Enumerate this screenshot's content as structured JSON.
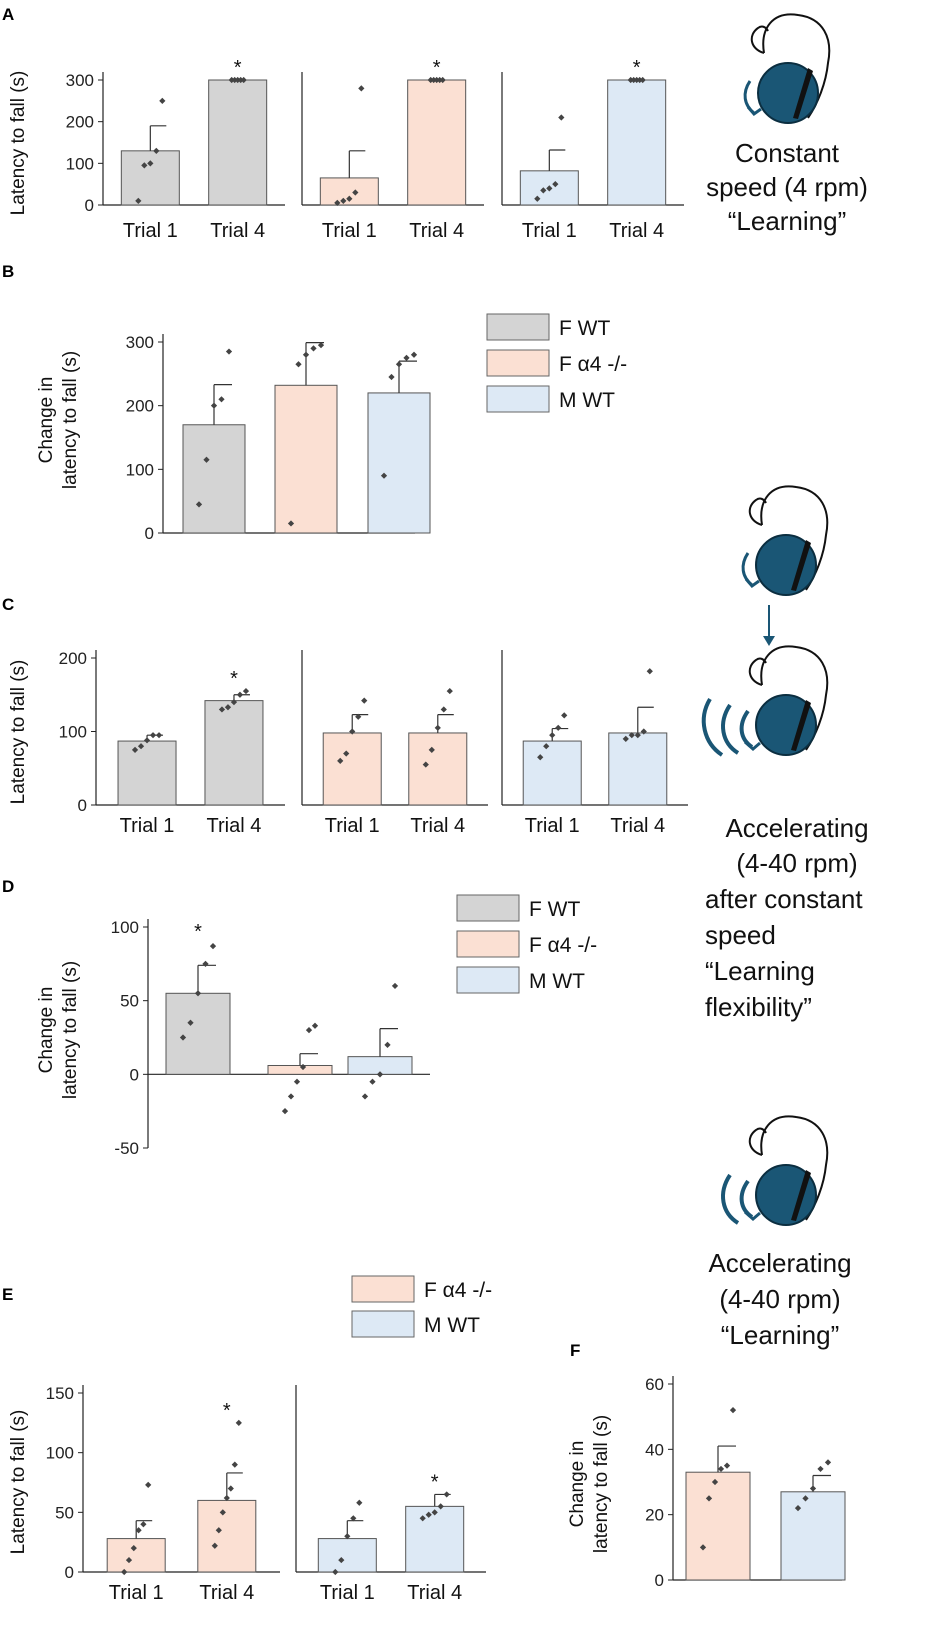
{
  "colors": {
    "F WT": "#d4d4d4",
    "F α4 -/-": "#fbe0d3",
    "M WT": "#dde9f5",
    "mouse_ball": "#1a5675",
    "arrow": "#1a5675"
  },
  "side_captions": {
    "constant": [
      "Constant",
      "speed (4 rpm)",
      "“Learning”"
    ],
    "flex": [
      "Accelerating",
      "(4-40 rpm)",
      "after constant",
      "speed",
      "“Learning",
      "flexibility”"
    ],
    "accel": [
      "Accelerating",
      "(4-40 rpm)",
      "“Learning”"
    ]
  },
  "chart_data": [
    {
      "panel": "A",
      "type": "bar",
      "ylabel": "Latency to fall (s)",
      "ylim": [
        0,
        300
      ],
      "yticks": [
        0,
        100,
        200,
        300
      ],
      "categories": [
        "Trial 1",
        "Trial 4"
      ],
      "groups": [
        {
          "name": "F WT",
          "means": [
            130,
            300
          ],
          "sem": [
            60,
            0
          ],
          "sig": [
            false,
            true
          ],
          "points": [
            [
              10,
              95,
              100,
              130,
              250
            ],
            [
              300,
              300,
              300,
              300,
              300
            ]
          ]
        },
        {
          "name": "F α4 -/-",
          "means": [
            65,
            300
          ],
          "sem": [
            65,
            0
          ],
          "sig": [
            false,
            true
          ],
          "points": [
            [
              5,
              10,
              15,
              30,
              280
            ],
            [
              300,
              300,
              300,
              300,
              300
            ]
          ]
        },
        {
          "name": "M WT",
          "means": [
            82,
            300
          ],
          "sem": [
            50,
            0
          ],
          "sig": [
            false,
            true
          ],
          "points": [
            [
              15,
              35,
              40,
              50,
              210
            ],
            [
              300,
              300,
              300,
              300,
              300
            ]
          ]
        }
      ]
    },
    {
      "panel": "B",
      "type": "bar",
      "ylabel": [
        "Change in",
        "latency to fall (s)"
      ],
      "ylim": [
        0,
        300
      ],
      "yticks": [
        0,
        100,
        200,
        300
      ],
      "legend": [
        "F WT",
        "F α4 -/-",
        "M WT"
      ],
      "groups": [
        {
          "name": "F WT",
          "mean": 170,
          "sem": 63,
          "points": [
            45,
            115,
            200,
            210,
            285
          ]
        },
        {
          "name": "F α4 -/-",
          "mean": 232,
          "sem": 67,
          "points": [
            15,
            265,
            280,
            290,
            295
          ]
        },
        {
          "name": "M WT",
          "mean": 220,
          "sem": 50,
          "points": [
            90,
            245,
            265,
            275,
            280
          ]
        }
      ]
    },
    {
      "panel": "C",
      "type": "bar",
      "ylabel": "Latency to fall (s)",
      "ylim": [
        0,
        200
      ],
      "yticks": [
        0,
        100,
        200
      ],
      "categories": [
        "Trial 1",
        "Trial 4"
      ],
      "groups": [
        {
          "name": "F WT",
          "means": [
            87,
            142
          ],
          "sem": [
            8,
            8
          ],
          "sig": [
            false,
            true
          ],
          "points": [
            [
              75,
              80,
              88,
              95,
              95
            ],
            [
              130,
              133,
              140,
              150,
              155
            ]
          ]
        },
        {
          "name": "F α4 -/-",
          "means": [
            98,
            98
          ],
          "sem": [
            25,
            25
          ],
          "sig": [
            false,
            false
          ],
          "points": [
            [
              60,
              70,
              100,
              120,
              142
            ],
            [
              55,
              75,
              105,
              130,
              155
            ]
          ]
        },
        {
          "name": "M WT",
          "means": [
            87,
            98
          ],
          "sem": [
            17,
            35
          ],
          "sig": [
            false,
            false
          ],
          "points": [
            [
              65,
              80,
              95,
              105,
              122
            ],
            [
              90,
              95,
              95,
              100,
              182
            ]
          ]
        }
      ]
    },
    {
      "panel": "D",
      "type": "bar",
      "ylabel": [
        "Change in",
        "latency to fall (s)"
      ],
      "ylim": [
        -50,
        100
      ],
      "yticks": [
        -50,
        0,
        50,
        100
      ],
      "legend": [
        "F WT",
        "F α4 -/-",
        "M WT"
      ],
      "groups": [
        {
          "name": "F WT",
          "mean": 55,
          "sem": 19,
          "sig": true,
          "points": [
            25,
            35,
            55,
            75,
            87
          ]
        },
        {
          "name": "F α4 -/-",
          "mean": 6,
          "sem": 8,
          "sig": false,
          "points": [
            -25,
            -15,
            -5,
            5,
            30,
            33
          ]
        },
        {
          "name": "M WT",
          "mean": 12,
          "sem": 19,
          "sig": false,
          "points": [
            -15,
            -5,
            0,
            20,
            60
          ]
        }
      ]
    },
    {
      "panel": "E",
      "type": "bar",
      "ylabel": "Latency to fall (s)",
      "ylim": [
        0,
        150
      ],
      "yticks": [
        0,
        50,
        100,
        150
      ],
      "categories": [
        "Trial 1",
        "Trial 4"
      ],
      "legend": [
        "F α4 -/-",
        "M WT"
      ],
      "groups": [
        {
          "name": "F α4 -/-",
          "means": [
            28,
            60
          ],
          "sem": [
            15,
            23
          ],
          "sig": [
            false,
            true
          ],
          "points": [
            [
              0,
              10,
              20,
              35,
              40,
              73
            ],
            [
              22,
              35,
              50,
              62,
              70,
              90,
              125
            ]
          ]
        },
        {
          "name": "M WT",
          "means": [
            28,
            55
          ],
          "sem": [
            15,
            10
          ],
          "sig": [
            false,
            true
          ],
          "points": [
            [
              0,
              10,
              30,
              45,
              58
            ],
            [
              45,
              48,
              50,
              55,
              65
            ]
          ]
        }
      ]
    },
    {
      "panel": "F",
      "type": "bar",
      "ylabel": [
        "Change in",
        "latency to fall (s)"
      ],
      "ylim": [
        0,
        60
      ],
      "yticks": [
        0,
        20,
        40,
        60
      ],
      "groups": [
        {
          "name": "F α4 -/-",
          "mean": 33,
          "sem": 8,
          "points": [
            10,
            25,
            30,
            34,
            35,
            52
          ]
        },
        {
          "name": "M WT",
          "mean": 27,
          "sem": 5,
          "points": [
            22,
            25,
            28,
            34,
            36
          ]
        }
      ]
    }
  ]
}
